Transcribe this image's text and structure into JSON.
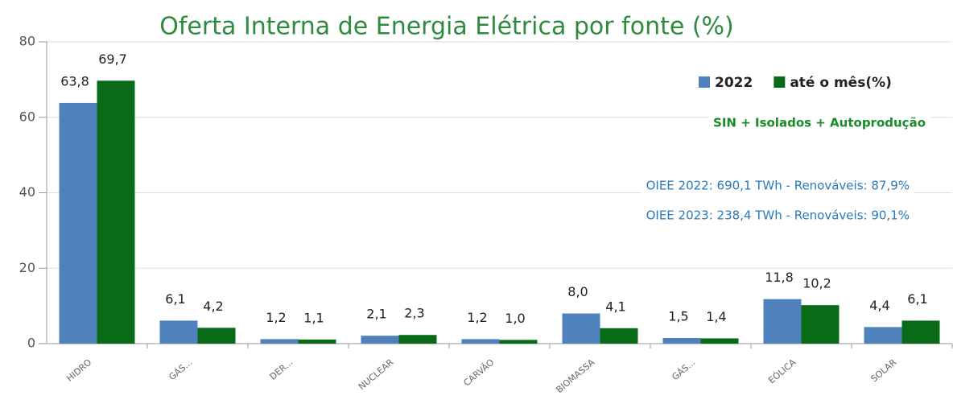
{
  "chart_data": {
    "type": "bar",
    "title": "Oferta Interna de Energia Elétrica por fonte (%)",
    "categories": [
      "HIDRO",
      "GÁS...",
      "DER...",
      "NUCLEAR",
      "CARVÃO",
      "BIOMASSA",
      "GÁS...",
      "EÓLICA",
      "SOLAR"
    ],
    "series": [
      {
        "name": "2022",
        "color": "#4f81bd",
        "values": [
          63.8,
          6.1,
          1.2,
          2.1,
          1.2,
          8.0,
          1.5,
          11.8,
          4.4
        ],
        "value_labels": [
          "63,8",
          "6,1",
          "1,2",
          "2,1",
          "1,2",
          "8,0",
          "1,5",
          "11,8",
          "4,4"
        ]
      },
      {
        "name": "até o mês(%)",
        "color": "#096b18",
        "values": [
          69.7,
          4.2,
          1.1,
          2.3,
          1.0,
          4.1,
          1.4,
          10.2,
          6.1
        ],
        "value_labels": [
          "69,7",
          "4,2",
          "1,1",
          "2,3",
          "1,0",
          "4,1",
          "1,4",
          "10,2",
          "6,1"
        ]
      }
    ],
    "ylim": [
      0,
      80
    ],
    "yticks": [
      0,
      20,
      40,
      60,
      80
    ],
    "grid": true,
    "legend": "top-right",
    "annotations": [
      {
        "text": "SIN + Isolados + Autoprodução",
        "color": "#1a8a2a"
      },
      {
        "text": "OIEE 2022: 690,1 TWh - Renováveis: 87,9%",
        "color": "#2a7ab8"
      },
      {
        "text": "OIEE 2023: 238,4 TWh - Renováveis: 90,1%",
        "color": "#2a7ab8"
      }
    ]
  }
}
